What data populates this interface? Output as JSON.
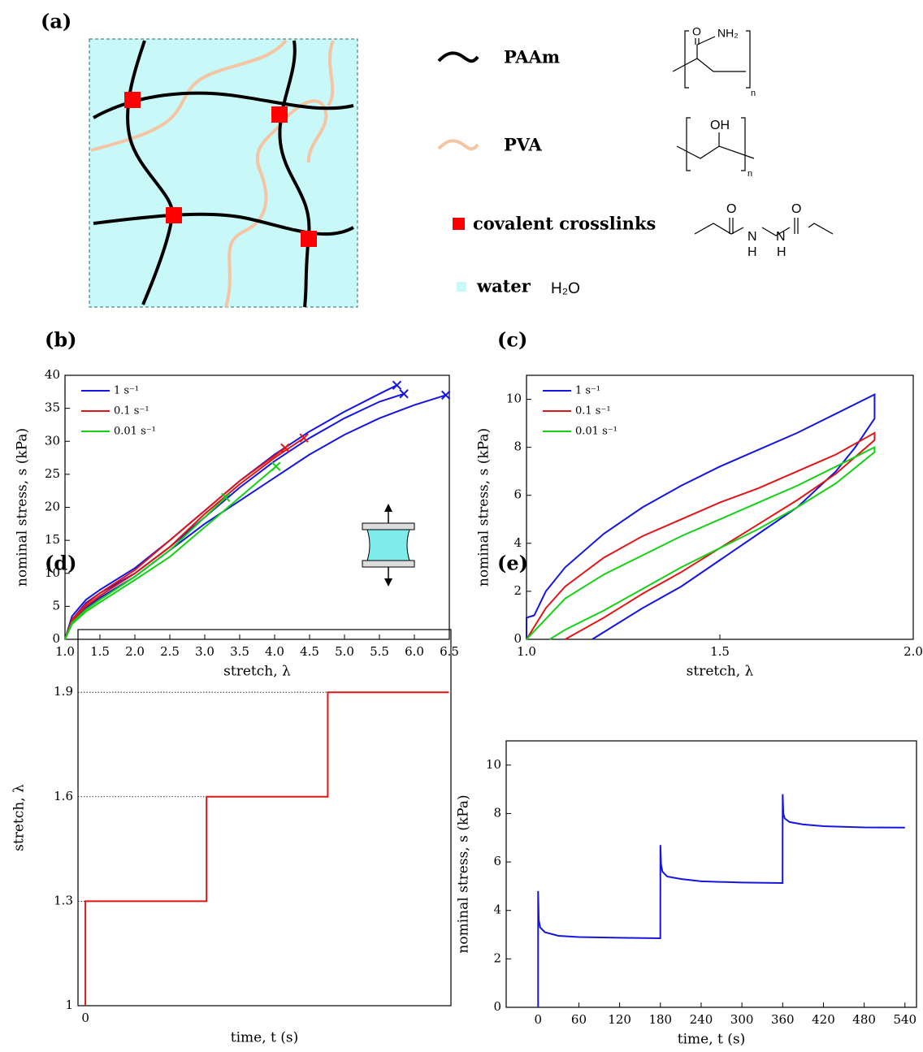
{
  "diagram": {
    "label": "(a)",
    "legend": [
      {
        "label": "PAAm"
      },
      {
        "label": "PVA"
      },
      {
        "label": "covalent crosslinks"
      },
      {
        "label": "water",
        "formula": "H₂O"
      }
    ],
    "structures": {
      "paam": [
        "O",
        "NH₂",
        "n"
      ],
      "pva": [
        "OH",
        "n"
      ],
      "crosslinker": [
        "O",
        "O",
        "N",
        "N",
        "H",
        "H"
      ]
    }
  },
  "chart_data": [
    {
      "type": "line",
      "panel": "(b)",
      "xlabel": "stretch, λ",
      "ylabel": "nominal stress, s (kPa)",
      "xlim": [
        1,
        6.5
      ],
      "ylim": [
        0,
        40
      ],
      "xticks": [
        {
          "value": 1,
          "label": "1.0"
        },
        1.5,
        {
          "value": 2,
          "label": "2.0"
        },
        2.5,
        {
          "value": 3,
          "label": "3.0"
        },
        3.5,
        {
          "value": 4,
          "label": "4.0"
        },
        4.5,
        {
          "value": 5,
          "label": "5.0"
        },
        5.5,
        {
          "value": 6,
          "label": "6.0"
        },
        6.5
      ],
      "yticks": [
        0,
        5,
        10,
        15,
        20,
        25,
        30,
        35,
        40
      ],
      "tick_marks": true,
      "legend": "upper left",
      "break_markers": true,
      "series": [
        {
          "name": "1 s⁻¹",
          "color": "#1515e0",
          "curves": [
            {
              "x": [
                1,
                1.1,
                1.3,
                1.5,
                2,
                2.5,
                3,
                3.5,
                4,
                4.5,
                5,
                5.5,
                5.75
              ],
              "y": [
                0,
                3.5,
                6,
                7.5,
                10.8,
                15,
                19.5,
                24,
                28,
                31.5,
                34.5,
                37.2,
                38.5
              ]
            },
            {
              "x": [
                1,
                1.1,
                1.3,
                1.5,
                2,
                2.5,
                3,
                3.5,
                4,
                4.5,
                5,
                5.5,
                5.85
              ],
              "y": [
                0,
                3,
                5.5,
                7,
                10,
                14,
                18.5,
                23,
                27,
                30.5,
                33.5,
                36,
                37.2
              ]
            },
            {
              "x": [
                1,
                1.1,
                1.3,
                1.5,
                2,
                2.5,
                3,
                3.5,
                4,
                4.5,
                5,
                5.5,
                6,
                6.45
              ],
              "y": [
                0,
                2.5,
                4.8,
                6.3,
                9.5,
                13.5,
                17.5,
                21,
                24.5,
                28,
                31,
                33.5,
                35.5,
                37
              ]
            }
          ]
        },
        {
          "name": "0.1 s⁻¹",
          "color": "#e01515",
          "curves": [
            {
              "x": [
                1,
                1.1,
                1.3,
                1.5,
                2,
                2.5,
                3,
                3.5,
                4,
                4.15
              ],
              "y": [
                0,
                3,
                5.3,
                7,
                10.5,
                15,
                19.5,
                24,
                27.8,
                29
              ]
            },
            {
              "x": [
                1,
                1.1,
                1.3,
                1.5,
                2,
                2.5,
                3,
                3.5,
                4,
                4.42
              ],
              "y": [
                0,
                2.8,
                5,
                6.6,
                10,
                14,
                19,
                23.5,
                27.5,
                30.5
              ]
            }
          ]
        },
        {
          "name": "0.01 s⁻¹",
          "color": "#15d015",
          "curves": [
            {
              "x": [
                1,
                1.1,
                1.3,
                1.5,
                2,
                2.5,
                3,
                3.3
              ],
              "y": [
                0,
                2.5,
                4.5,
                6,
                9.5,
                13.5,
                18.5,
                21.5
              ]
            },
            {
              "x": [
                1,
                1.1,
                1.3,
                1.5,
                2,
                2.5,
                3,
                3.5,
                4.02
              ],
              "y": [
                0,
                2.3,
                4.2,
                5.6,
                9,
                12.5,
                17,
                21.5,
                26.2
              ]
            }
          ]
        }
      ]
    },
    {
      "type": "line",
      "panel": "(c)",
      "xlabel": "stretch, λ",
      "ylabel": "nominal stress, s (kPa)",
      "xlim": [
        1,
        2
      ],
      "ylim": [
        0,
        11
      ],
      "xticks": [
        {
          "value": 1,
          "label": "1.0"
        },
        1.5,
        {
          "value": 2,
          "label": "2.0"
        }
      ],
      "yticks": [
        0,
        2,
        4,
        6,
        8,
        10
      ],
      "tick_marks": true,
      "legend": "upper left",
      "series": [
        {
          "name": "1 s⁻¹",
          "color": "#1515e0",
          "x": [
            1,
            1,
            1.02,
            1.05,
            1.1,
            1.2,
            1.3,
            1.4,
            1.5,
            1.6,
            1.7,
            1.8,
            1.9,
            1.9,
            1.85,
            1.8,
            1.7,
            1.6,
            1.5,
            1.4,
            1.3,
            1.2,
            1.17
          ],
          "y": [
            0,
            0.9,
            1,
            2,
            3,
            4.4,
            5.5,
            6.4,
            7.2,
            7.9,
            8.6,
            9.4,
            10.2,
            9.2,
            8,
            7,
            5.5,
            4.4,
            3.3,
            2.2,
            1.3,
            0.3,
            0
          ]
        },
        {
          "name": "0.1 s⁻¹",
          "color": "#e01515",
          "x": [
            1,
            1.05,
            1.1,
            1.2,
            1.3,
            1.4,
            1.5,
            1.6,
            1.7,
            1.8,
            1.9,
            1.9,
            1.8,
            1.7,
            1.6,
            1.5,
            1.4,
            1.3,
            1.2,
            1.1
          ],
          "y": [
            0,
            1.3,
            2.2,
            3.4,
            4.3,
            5,
            5.7,
            6.3,
            7,
            7.7,
            8.6,
            8.3,
            6.9,
            5.8,
            4.8,
            3.8,
            2.8,
            1.9,
            0.9,
            0
          ]
        },
        {
          "name": "0.01 s⁻¹",
          "color": "#15d015",
          "x": [
            1,
            1.1,
            1.2,
            1.3,
            1.4,
            1.5,
            1.6,
            1.7,
            1.8,
            1.9,
            1.9,
            1.8,
            1.7,
            1.6,
            1.5,
            1.4,
            1.3,
            1.2,
            1.1,
            1.06
          ],
          "y": [
            0,
            1.7,
            2.7,
            3.5,
            4.3,
            5,
            5.7,
            6.4,
            7.2,
            8,
            7.8,
            6.5,
            5.5,
            4.6,
            3.8,
            3,
            2.1,
            1.2,
            0.4,
            0
          ]
        }
      ]
    },
    {
      "type": "line",
      "panel": "(d)",
      "xlabel": "time, t (s)",
      "ylabel": "stretch, λ",
      "xlim": [
        -11,
        543
      ],
      "ylim": [
        1,
        2.08
      ],
      "xticks": [
        0
      ],
      "yticks": [
        1,
        1.3,
        1.6,
        1.9
      ],
      "tick_marks": false,
      "guides": true,
      "series": [
        {
          "color": "#e01515",
          "x": [
            0,
            0,
            180,
            180,
            360,
            360,
            540
          ],
          "y": [
            1,
            1.3,
            1.3,
            1.6,
            1.6,
            1.9,
            1.9
          ]
        }
      ]
    },
    {
      "type": "line",
      "panel": "(e)",
      "xlabel": "time, t (s)",
      "ylabel": "nominal stress, s (kPa)",
      "xlim": [
        -47,
        557
      ],
      "ylim": [
        0,
        11
      ],
      "xticks": [
        0,
        60,
        120,
        180,
        240,
        300,
        360,
        420,
        480,
        540
      ],
      "yticks": [
        0,
        2,
        4,
        6,
        8,
        10
      ],
      "tick_marks": true,
      "series": [
        {
          "color": "#1515e0",
          "x": [
            0,
            0,
            1,
            3,
            10,
            30,
            60,
            120,
            179.9,
            180,
            181,
            183,
            190,
            210,
            240,
            300,
            359.9,
            360,
            361,
            363,
            370,
            390,
            420,
            480,
            540
          ],
          "y": [
            0,
            4.8,
            3.6,
            3.3,
            3.1,
            2.95,
            2.9,
            2.87,
            2.85,
            6.7,
            5.9,
            5.6,
            5.4,
            5.3,
            5.2,
            5.15,
            5.13,
            8.8,
            8,
            7.8,
            7.65,
            7.55,
            7.48,
            7.43,
            7.42
          ]
        }
      ]
    }
  ]
}
